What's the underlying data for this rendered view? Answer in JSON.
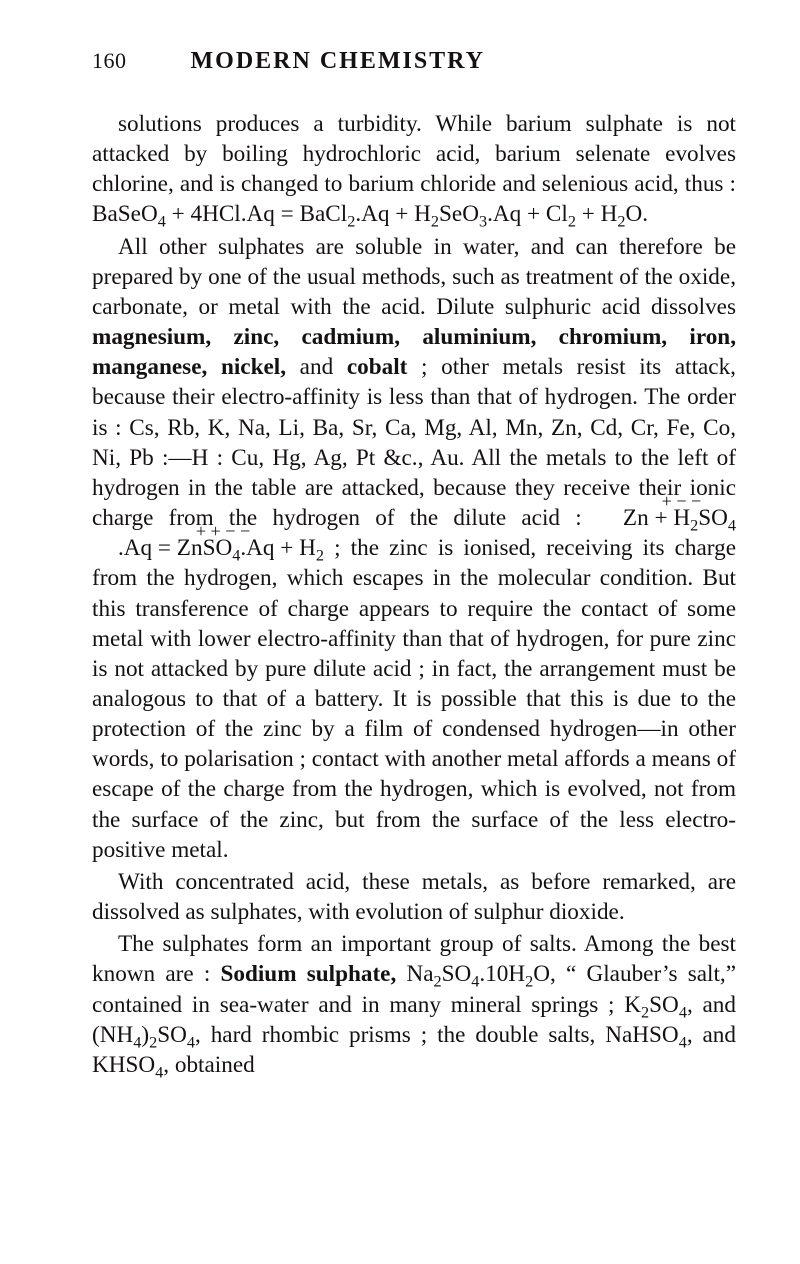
{
  "page_number": "160",
  "book_title": "MODERN CHEMISTRY",
  "p1_a": "solutions produces a turbidity. While barium sulphate is not attacked by boiling hydrochloric acid, barium selen­ate evolves chlorine, and is changed to barium chloride and selenious acid, thus : BaSeO",
  "p1_b": " + 4HCl.Aq = BaCl",
  "p1_c": ".Aq + H",
  "p1_d": "SeO",
  "p1_e": ".Aq + Cl",
  "p1_f": " + H",
  "p1_g": "O.",
  "sub4": "4",
  "sub2": "2",
  "sub3": "3",
  "p2_a": "All other sulphates are soluble in water, and can there­fore be prepared by one of the usual methods, such as treatment of the oxide, carbonate, or metal with the acid. Dilute sulphuric acid dissolves ",
  "p2_bold1": "magnesium, zinc, cadmium, aluminium, chromium, iron, manganese, nickel,",
  "p2_b": " and ",
  "p2_bold2": "cobalt",
  "p2_c": " ; other metals resist its attack, because their electro-affinity is less than that of hydrogen. The order is : Cs, Rb, K, Na, Li, Ba, Sr, Ca, Mg, Al, Mn, Zn, Cd, Cr, Fe, Co, Ni, Pb :—H : Cu, Hg, Ag, Pt &c., Au. All the metals to the left of hydrogen in the table are attacked, because they receive their ionic charge from the hydrogen of the dilute acid : ",
  "lhs_signs": "+ − −",
  "rhs_signs": "+ + − −",
  "lhs_a": "Zn + H",
  "lhs_b": "SO",
  "rhs_a": ".Aq = ZnSO",
  "rhs_b": ".Aq + H",
  "p2_d": " ; the zinc is ionised, receiving its charge from the hydrogen, which escapes in the molecular condition. But this trans­ference of charge appears to require the contact of some metal with lower electro-affinity than that of hydrogen, for pure zinc is not attacked by pure dilute acid ; in fact, the arrangement must be analogous to that of a battery. It is possible that this is due to the protection of the zinc by a film of condensed hydrogen—in other words, to polarisa­tion ; contact with another metal affords a means of escape of the charge from the hydrogen, which is evolved, not from the surface of the zinc, but from the surface of the less electro-positive metal.",
  "p3": "With concentrated acid, these metals, as before remarked, are dissolved as sulphates, with evolution of sulphur dioxide.",
  "p4_a": "The sulphates form an important group of salts. Among the best known are : ",
  "p4_bold": "Sodium sulphate,",
  "p4_b": " Na",
  "p4_c": "SO",
  "p4_d": ".10H",
  "p4_e": "O, “ Glauber’s salt,” contained in sea-water and in many mineral springs ; K",
  "p4_f": "SO",
  "p4_g": ", and (NH",
  "p4_h": ")",
  "p4_i": "SO",
  "p4_j": ", hard rhombic prisms ; the double salts, NaHSO",
  "p4_k": ", and KHSO",
  "p4_l": ", obtained"
}
